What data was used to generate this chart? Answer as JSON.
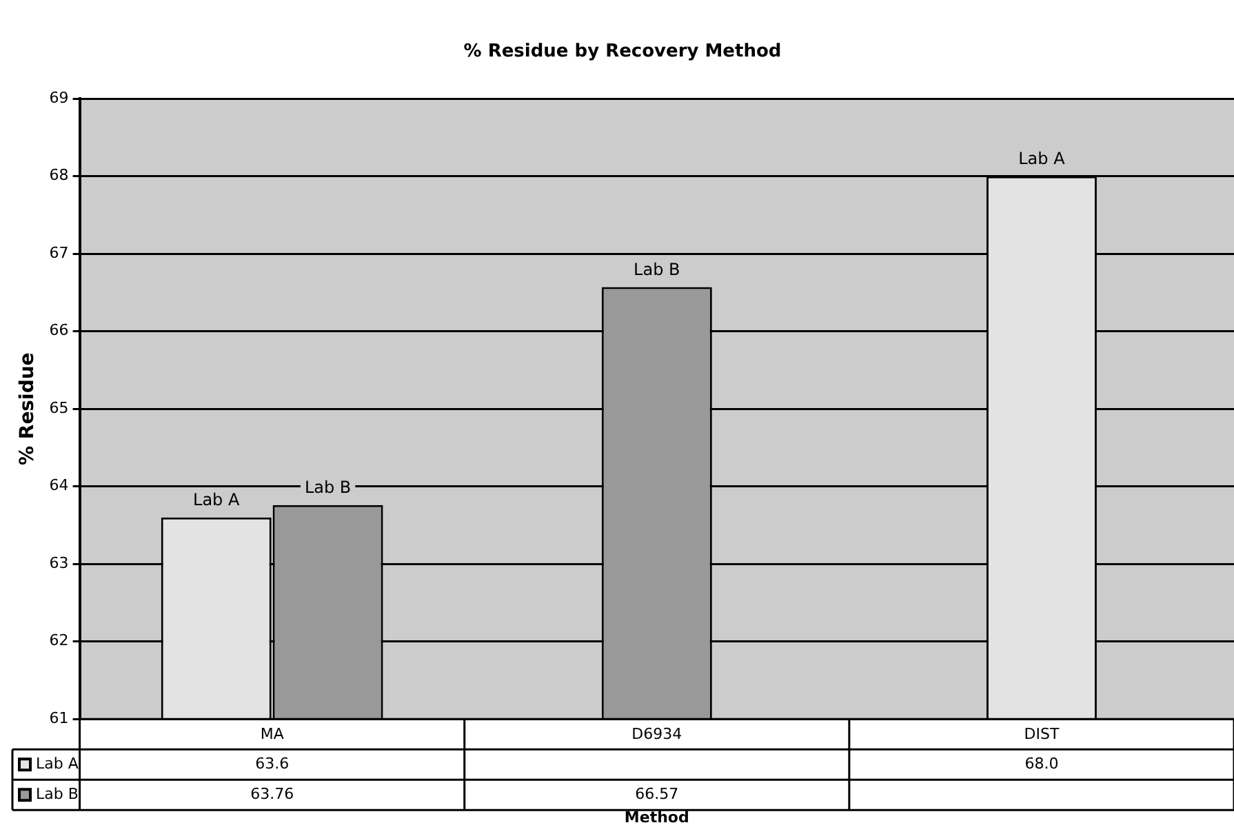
{
  "chart_data": {
    "type": "bar",
    "title": "% Residue by Recovery Method",
    "xlabel": "Method",
    "ylabel": "% Residue",
    "categories": [
      "MA",
      "D6934",
      "DIST"
    ],
    "series": [
      {
        "name": "Lab A",
        "color": "#e3e3e3",
        "values": [
          63.6,
          null,
          68.0
        ],
        "value_labels": [
          "63.6",
          null,
          "68.0"
        ]
      },
      {
        "name": "Lab B",
        "color": "#999999",
        "values": [
          63.76,
          66.57,
          null
        ],
        "value_labels": [
          "63.76",
          "66.57",
          null
        ]
      }
    ],
    "ylim": [
      61,
      69
    ],
    "yticks": [
      61,
      62,
      63,
      64,
      65,
      66,
      67,
      68,
      69
    ],
    "grid": "y",
    "legend": "bottom left"
  }
}
